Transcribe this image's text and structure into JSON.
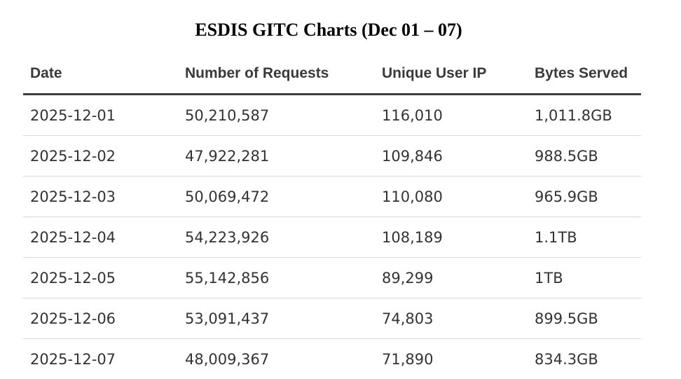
{
  "title": "ESDIS GITC Charts (Dec 01 – 07)",
  "table": {
    "headers": [
      "Date",
      "Number of Requests",
      "Unique User IP",
      "Bytes Served"
    ],
    "rows": [
      [
        "2025-12-01",
        "50,210,587",
        "116,010",
        "1,011.8GB"
      ],
      [
        "2025-12-02",
        "47,922,281",
        "109,846",
        "988.5GB"
      ],
      [
        "2025-12-03",
        "50,069,472",
        "110,080",
        "965.9GB"
      ],
      [
        "2025-12-04",
        "54,223,926",
        "108,189",
        "1.1TB"
      ],
      [
        "2025-12-05",
        "55,142,856",
        "89,299",
        "1TB"
      ],
      [
        "2025-12-06",
        "53,091,437",
        "74,803",
        "899.5GB"
      ],
      [
        "2025-12-07",
        "48,009,367",
        "71,890",
        "834.3GB"
      ]
    ]
  }
}
